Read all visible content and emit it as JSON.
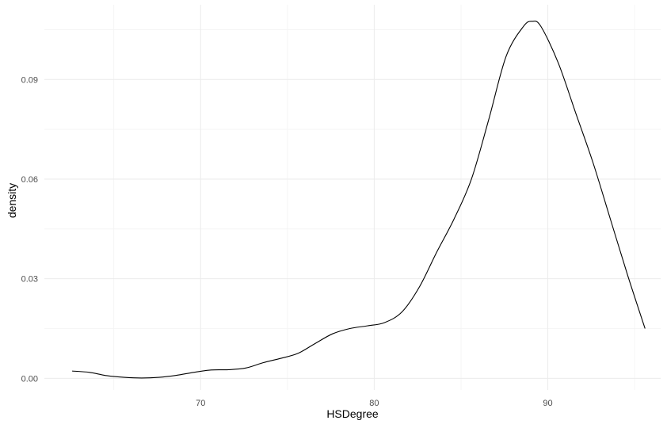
{
  "chart_data": {
    "type": "line",
    "title": "",
    "xlabel": "HSDegree",
    "ylabel": "density",
    "xlim": [
      61,
      96.5
    ],
    "ylim": [
      -0.0035,
      0.1125
    ],
    "x_ticks": [
      70,
      80,
      90
    ],
    "x_tick_labels": [
      "70",
      "80",
      "90"
    ],
    "y_ticks": [
      0.0,
      0.03,
      0.06,
      0.09
    ],
    "y_tick_labels": [
      "0.00",
      "0.03",
      "0.06",
      "0.09"
    ],
    "x_minor": [
      65,
      75,
      85,
      95
    ],
    "y_minor": [
      0.015,
      0.045,
      0.075,
      0.105
    ],
    "grid": true,
    "legend": "none",
    "line_color": "#000000",
    "series": [
      {
        "x": [
          62.6,
          63.6,
          64.6,
          65.6,
          66.6,
          67.6,
          68.6,
          69.6,
          70.6,
          71.6,
          72.6,
          73.6,
          74.6,
          75.6,
          76.6,
          77.6,
          78.6,
          79.6,
          80.6,
          81.6,
          82.6,
          83.6,
          84.6,
          85.6,
          86.6,
          87.6,
          88.6,
          89.1,
          89.6,
          90.6,
          91.6,
          92.6,
          93.6,
          94.6,
          95.6
        ],
        "y": [
          0.0022,
          0.0018,
          0.0008,
          0.0003,
          0.0001,
          0.0003,
          0.0009,
          0.0018,
          0.0025,
          0.0026,
          0.0031,
          0.0047,
          0.006,
          0.0075,
          0.0105,
          0.0134,
          0.015,
          0.0158,
          0.0168,
          0.02,
          0.0275,
          0.038,
          0.048,
          0.06,
          0.078,
          0.097,
          0.106,
          0.1075,
          0.106,
          0.095,
          0.08,
          0.065,
          0.048,
          0.031,
          0.015
        ]
      }
    ]
  }
}
